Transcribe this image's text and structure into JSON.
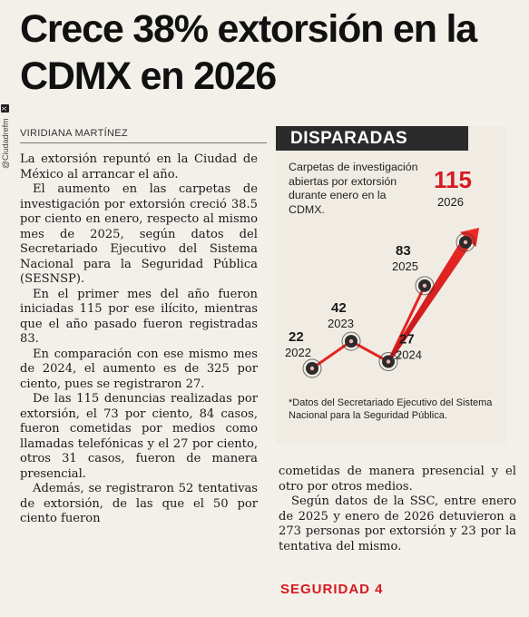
{
  "headline": "Crece 38% extorsión en la CDMX en 2026",
  "side_handle": "@Ciudadrefm",
  "byline": "VIRIDIANA MARTÍNEZ",
  "col1_paragraphs": [
    "La extorsión repuntó en la Ciudad de México al arrancar el año.",
    "El aumento en las carpetas de investigación por extorsión creció 38.5 por ciento en enero, respecto al mismo mes de 2025, según datos del Secretariado Ejecutivo del Sistema Nacional para la Seguridad Pública (SESNSP).",
    "En el primer mes del año fueron iniciadas 115 por ese ilícito, mientras que el año pasado fueron registradas 83.",
    "En comparación con ese mismo mes de 2024, el aumento es de 325 por ciento, pues se registraron 27.",
    "De las 115 denuncias realizadas por extorsión, el 73 por ciento, 84 casos, fueron cometidas por medios como llamadas telefónicas y el 27 por ciento, otros 31 casos, fueron de manera presencial.",
    "Además, se registraron 52 tentativas de extorsión, de las que el 50 por ciento fueron"
  ],
  "col2_paragraphs": [
    "cometidas de manera presencial y el otro por otros medios.",
    "Según datos de la SSC, entre enero de 2025 y enero de 2026 detuvieron a 273 personas por extorsión y 23 por la tentativa del mismo."
  ],
  "section_label": "SEGURIDAD 4",
  "chart_header": "DISPARADAS",
  "chart_description": "Carpetas de investigación abiertas por extorsión durante enero en la CDMX.",
  "chart_note": "*Datos del Secretariado Ejecutivo del Sistema Nacional para la Seguridad Pública.",
  "colors": {
    "accent": "#d71920",
    "highlight": "#e52420",
    "header_bg": "#2b2b2b"
  },
  "chart_data": {
    "type": "line",
    "x": [
      "2022",
      "2023",
      "2024",
      "2025",
      "2026"
    ],
    "values": [
      22,
      42,
      27,
      83,
      115
    ],
    "value_labels": [
      "22",
      "42",
      "27",
      "83",
      "115"
    ],
    "highlight_index": 4,
    "title": "DISPARADAS"
  }
}
